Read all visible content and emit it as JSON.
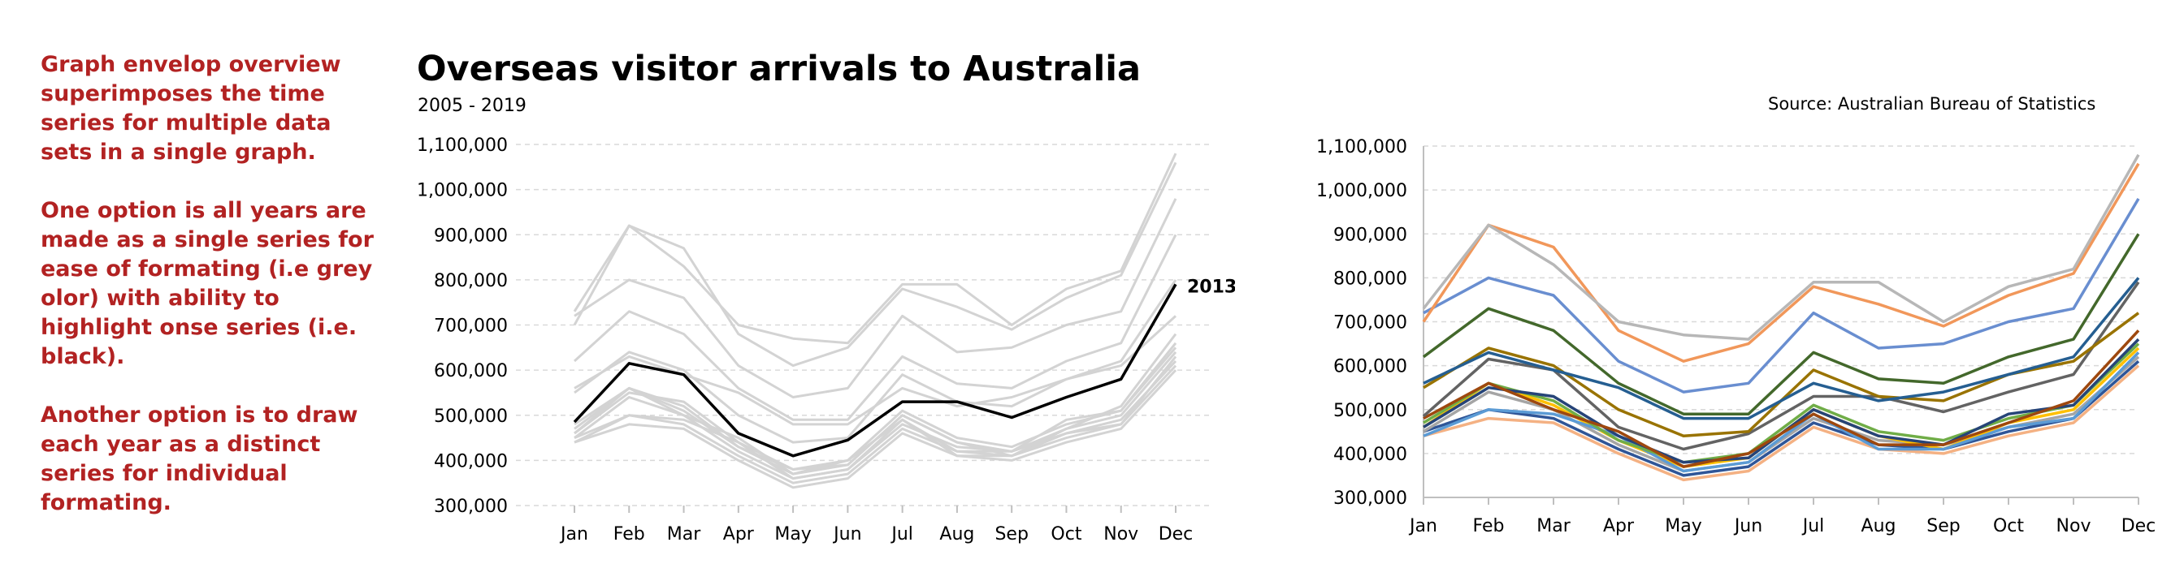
{
  "notes": {
    "p1": "Graph envelop overview superimposes the time series for multiple data sets in a single graph.",
    "p2": "One option is all years are made as a single series for ease of formating (i.e grey olor) with ability to highlight onse series (i.e. black).",
    "p3": "Another option is to draw each year as a distinct series for individual formating."
  },
  "title": "Overseas visitor arrivals to Australia",
  "subtitle": "2005 - 2019",
  "source": "Source: Australian Bureau of Statistics",
  "colors": {
    "envelope": "#d3d3d3",
    "highlight": "#000000",
    "grid": "#d9d9d9",
    "axis": "#bfbfbf",
    "notes_text": "#b22222",
    "palette": [
      "#f4b183",
      "#2f5597",
      "#a5a5a5",
      "#ffc000",
      "#5b9bd5",
      "#70ad47",
      "#264478",
      "#9e480e",
      "#636363",
      "#997300",
      "#255e91",
      "#43682b",
      "#698ed0",
      "#f1975a",
      "#b7b7b7"
    ]
  },
  "chart_data": [
    {
      "type": "line",
      "title": "Overseas visitor arrivals to Australia",
      "subtitle": "2005 - 2019",
      "categories": [
        "Jan",
        "Feb",
        "Mar",
        "Apr",
        "May",
        "Jun",
        "Jul",
        "Aug",
        "Sep",
        "Oct",
        "Nov",
        "Dec"
      ],
      "ylim": [
        300000,
        1100000
      ],
      "yticks": [
        300000,
        400000,
        500000,
        600000,
        700000,
        800000,
        900000,
        1000000,
        1100000
      ],
      "ytick_labels": [
        "300,000",
        "400,000",
        "500,000",
        "600,000",
        "700,000",
        "800,000",
        "900,000",
        "1,000,000",
        "1,100,000"
      ],
      "grid": "horizontal dashed",
      "style": "all years single grey envelope, one year highlighted black",
      "highlight_label": "2013",
      "highlight_index": 8,
      "series": [
        {
          "values": [
            440000,
            480000,
            470000,
            400000,
            340000,
            360000,
            460000,
            410000,
            400000,
            440000,
            470000,
            600000
          ]
        },
        {
          "values": [
            450000,
            500000,
            480000,
            410000,
            350000,
            370000,
            470000,
            420000,
            410000,
            450000,
            480000,
            610000
          ]
        },
        {
          "values": [
            450000,
            540000,
            500000,
            420000,
            360000,
            380000,
            480000,
            430000,
            420000,
            460000,
            490000,
            620000
          ]
        },
        {
          "values": [
            460000,
            560000,
            510000,
            430000,
            370000,
            390000,
            500000,
            440000,
            410000,
            470000,
            500000,
            640000
          ]
        },
        {
          "values": [
            440000,
            500000,
            490000,
            440000,
            360000,
            380000,
            490000,
            410000,
            410000,
            460000,
            480000,
            630000
          ]
        },
        {
          "values": [
            470000,
            560000,
            520000,
            430000,
            380000,
            400000,
            510000,
            450000,
            430000,
            480000,
            510000,
            650000
          ]
        },
        {
          "values": [
            460000,
            550000,
            530000,
            440000,
            380000,
            390000,
            500000,
            440000,
            420000,
            490000,
            510000,
            660000
          ]
        },
        {
          "values": [
            480000,
            560000,
            500000,
            450000,
            370000,
            400000,
            490000,
            420000,
            420000,
            470000,
            520000,
            680000
          ]
        },
        {
          "values": [
            485000,
            615000,
            590000,
            460000,
            410000,
            445000,
            530000,
            530000,
            495000,
            540000,
            580000,
            790000
          ]
        },
        {
          "values": [
            550000,
            640000,
            600000,
            500000,
            440000,
            450000,
            590000,
            530000,
            520000,
            580000,
            610000,
            720000
          ]
        },
        {
          "values": [
            560000,
            630000,
            590000,
            550000,
            480000,
            480000,
            560000,
            520000,
            540000,
            580000,
            620000,
            800000
          ]
        },
        {
          "values": [
            620000,
            730000,
            680000,
            560000,
            490000,
            490000,
            630000,
            570000,
            560000,
            620000,
            660000,
            900000
          ]
        },
        {
          "values": [
            720000,
            800000,
            760000,
            610000,
            540000,
            560000,
            720000,
            640000,
            650000,
            700000,
            730000,
            980000
          ]
        },
        {
          "values": [
            700000,
            920000,
            870000,
            680000,
            610000,
            650000,
            780000,
            740000,
            690000,
            760000,
            810000,
            1060000
          ]
        },
        {
          "values": [
            730000,
            920000,
            830000,
            700000,
            670000,
            660000,
            790000,
            790000,
            700000,
            780000,
            820000,
            1080000
          ]
        }
      ]
    },
    {
      "type": "line",
      "categories": [
        "Jan",
        "Feb",
        "Mar",
        "Apr",
        "May",
        "Jun",
        "Jul",
        "Aug",
        "Sep",
        "Oct",
        "Nov",
        "Dec"
      ],
      "ylim": [
        300000,
        1100000
      ],
      "yticks": [
        300000,
        400000,
        500000,
        600000,
        700000,
        800000,
        900000,
        1000000,
        1100000
      ],
      "ytick_labels": [
        "300,000",
        "400,000",
        "500,000",
        "600,000",
        "700,000",
        "800,000",
        "900,000",
        "1,000,000",
        "1,100,000"
      ],
      "grid": "horizontal dashed",
      "style": "each year a distinct coloured series",
      "series": [
        {
          "values": [
            440000,
            480000,
            470000,
            400000,
            340000,
            360000,
            460000,
            410000,
            400000,
            440000,
            470000,
            600000
          ]
        },
        {
          "values": [
            450000,
            500000,
            480000,
            410000,
            350000,
            370000,
            470000,
            420000,
            410000,
            450000,
            480000,
            610000
          ]
        },
        {
          "values": [
            450000,
            540000,
            500000,
            420000,
            360000,
            380000,
            480000,
            430000,
            420000,
            460000,
            490000,
            620000
          ]
        },
        {
          "values": [
            460000,
            560000,
            510000,
            430000,
            370000,
            390000,
            500000,
            440000,
            410000,
            470000,
            500000,
            640000
          ]
        },
        {
          "values": [
            440000,
            500000,
            490000,
            440000,
            360000,
            380000,
            490000,
            410000,
            410000,
            460000,
            480000,
            630000
          ]
        },
        {
          "values": [
            470000,
            560000,
            520000,
            430000,
            380000,
            400000,
            510000,
            450000,
            430000,
            480000,
            510000,
            650000
          ]
        },
        {
          "values": [
            460000,
            550000,
            530000,
            440000,
            380000,
            390000,
            500000,
            440000,
            420000,
            490000,
            510000,
            660000
          ]
        },
        {
          "values": [
            480000,
            560000,
            500000,
            450000,
            370000,
            400000,
            490000,
            420000,
            420000,
            470000,
            520000,
            680000
          ]
        },
        {
          "values": [
            485000,
            615000,
            590000,
            460000,
            410000,
            445000,
            530000,
            530000,
            495000,
            540000,
            580000,
            790000
          ]
        },
        {
          "values": [
            550000,
            640000,
            600000,
            500000,
            440000,
            450000,
            590000,
            530000,
            520000,
            580000,
            610000,
            720000
          ]
        },
        {
          "values": [
            560000,
            630000,
            590000,
            550000,
            480000,
            480000,
            560000,
            520000,
            540000,
            580000,
            620000,
            800000
          ]
        },
        {
          "values": [
            620000,
            730000,
            680000,
            560000,
            490000,
            490000,
            630000,
            570000,
            560000,
            620000,
            660000,
            900000
          ]
        },
        {
          "values": [
            720000,
            800000,
            760000,
            610000,
            540000,
            560000,
            720000,
            640000,
            650000,
            700000,
            730000,
            980000
          ]
        },
        {
          "values": [
            700000,
            920000,
            870000,
            680000,
            610000,
            650000,
            780000,
            740000,
            690000,
            760000,
            810000,
            1060000
          ]
        },
        {
          "values": [
            730000,
            920000,
            830000,
            700000,
            670000,
            660000,
            790000,
            790000,
            700000,
            780000,
            820000,
            1080000
          ]
        }
      ]
    }
  ]
}
